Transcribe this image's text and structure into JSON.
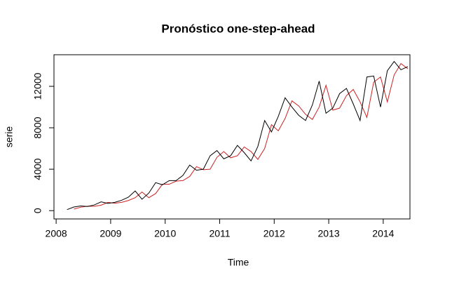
{
  "chart_data": {
    "type": "line",
    "title": "Pronóstico one-step-ahead",
    "xlabel": "Time",
    "ylabel": "serie",
    "x": [
      2008.2,
      2008.325,
      2008.45,
      2008.575,
      2008.7,
      2008.825,
      2008.95,
      2009.075,
      2009.2,
      2009.325,
      2009.45,
      2009.575,
      2009.7,
      2009.825,
      2009.95,
      2010.075,
      2010.2,
      2010.325,
      2010.45,
      2010.575,
      2010.7,
      2010.825,
      2010.95,
      2011.075,
      2011.2,
      2011.325,
      2011.45,
      2011.575,
      2011.7,
      2011.825,
      2011.95,
      2012.075,
      2012.2,
      2012.325,
      2012.45,
      2012.575,
      2012.7,
      2012.825,
      2012.95,
      2013.075,
      2013.2,
      2013.325,
      2013.45,
      2013.575,
      2013.7,
      2013.825,
      2013.95,
      2014.075,
      2014.2,
      2014.325,
      2014.45
    ],
    "series": [
      {
        "color": "#000000",
        "values": [
          100,
          350,
          450,
          400,
          550,
          850,
          700,
          800,
          1000,
          1300,
          1900,
          1100,
          1700,
          2700,
          2500,
          2900,
          2900,
          3400,
          4400,
          3900,
          4000,
          5300,
          5800,
          5000,
          5300,
          6300,
          5600,
          4800,
          6200,
          8700,
          7600,
          9100,
          10900,
          10000,
          9200,
          8700,
          10200,
          12500,
          9400,
          9900,
          11300,
          11800,
          10300,
          8700,
          12900,
          13000,
          10000,
          13500,
          14400,
          13600,
          13900
        ]
      },
      {
        "color": "#cc2222",
        "values": [
          null,
          150,
          330,
          430,
          420,
          530,
          800,
          720,
          800,
          980,
          1250,
          1800,
          1250,
          1650,
          2550,
          2550,
          2850,
          2900,
          3300,
          4250,
          3950,
          4000,
          5150,
          5700,
          5100,
          5300,
          6150,
          5700,
          4950,
          6000,
          8300,
          7700,
          8900,
          10600,
          10100,
          9300,
          8800,
          10000,
          12100,
          9700,
          9900,
          11100,
          11700,
          10500,
          9000,
          12400,
          12900,
          10500,
          13100,
          14200,
          13700
        ]
      }
    ],
    "xlim": [
      2007.96,
      2014.49
    ],
    "ylim": [
      -800,
      15050
    ],
    "xticks": [
      2008,
      2009,
      2010,
      2011,
      2012,
      2013,
      2014
    ],
    "yticks": [
      0,
      4000,
      8000,
      12000
    ]
  }
}
